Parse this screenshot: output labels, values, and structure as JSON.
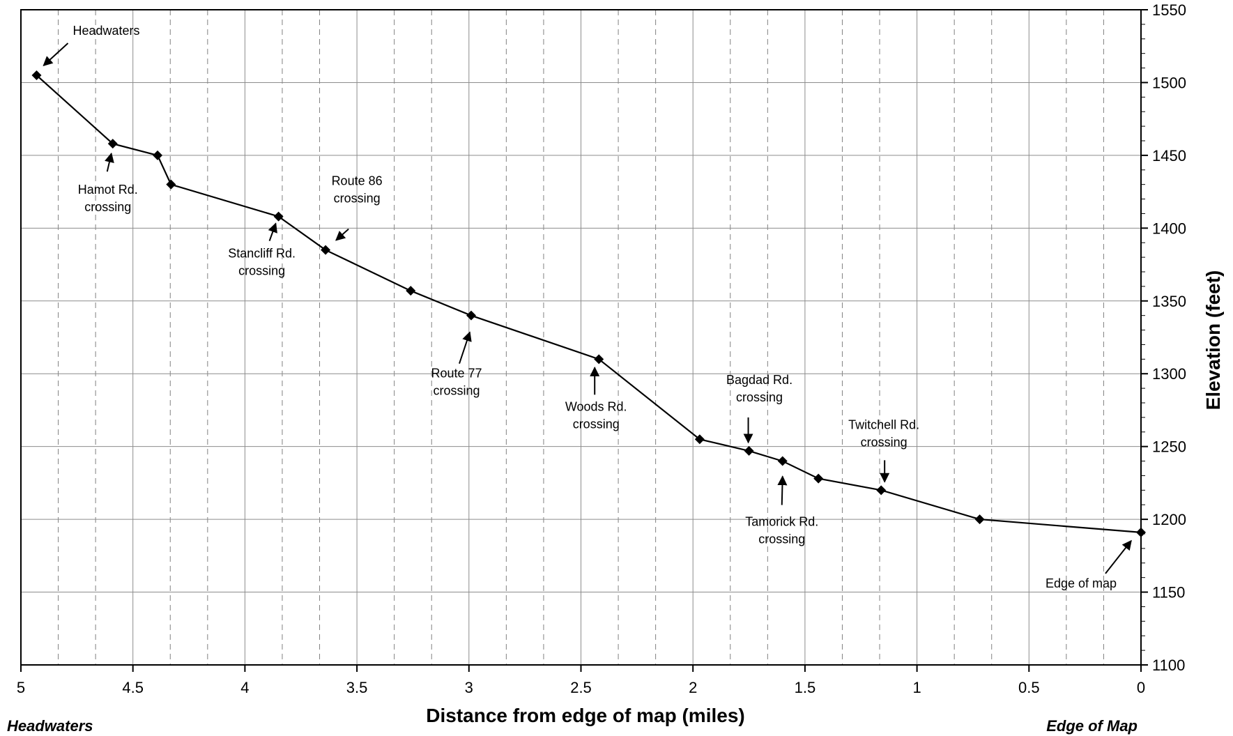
{
  "chart_data": {
    "type": "line",
    "xlabel": "Distance from edge of map (miles)",
    "ylabel": "Elevation (feet)",
    "xlim": [
      5,
      0
    ],
    "ylim": [
      1100,
      1550
    ],
    "x_reversed": true,
    "y_axis_side": "right",
    "grid": true,
    "x_ticks": [
      5,
      4.5,
      4,
      3.5,
      3,
      2.5,
      2,
      1.5,
      1,
      0.5,
      0
    ],
    "y_ticks": [
      1100,
      1150,
      1200,
      1250,
      1300,
      1350,
      1400,
      1450,
      1500,
      1550
    ],
    "x_tick_labels": [
      "5",
      "4.5",
      "4",
      "3.5",
      "3",
      "2.5",
      "2",
      "1.5",
      "1",
      "0.5",
      "0"
    ],
    "y_tick_labels": [
      "1100",
      "1150",
      "1200",
      "1250",
      "1300",
      "1350",
      "1400",
      "1450",
      "1500",
      "1550"
    ],
    "series": [
      {
        "marker": "diamond",
        "color": "#000000",
        "points": [
          {
            "x": 4.93,
            "y": 1505
          },
          {
            "x": 4.59,
            "y": 1458
          },
          {
            "x": 4.39,
            "y": 1450
          },
          {
            "x": 4.33,
            "y": 1430
          },
          {
            "x": 3.85,
            "y": 1408
          },
          {
            "x": 3.64,
            "y": 1385
          },
          {
            "x": 3.26,
            "y": 1357
          },
          {
            "x": 2.99,
            "y": 1340
          },
          {
            "x": 2.42,
            "y": 1310
          },
          {
            "x": 1.97,
            "y": 1255
          },
          {
            "x": 1.75,
            "y": 1247
          },
          {
            "x": 1.6,
            "y": 1240
          },
          {
            "x": 1.44,
            "y": 1228
          },
          {
            "x": 1.16,
            "y": 1220
          },
          {
            "x": 0.72,
            "y": 1200
          },
          {
            "x": 0.0,
            "y": 1191
          }
        ]
      }
    ],
    "annotations": [
      {
        "lines": [
          "Headwaters"
        ],
        "x": 4.93,
        "y": 1505
      },
      {
        "lines": [
          "Hamot  Rd.",
          "crossing"
        ],
        "x": 4.59,
        "y": 1458
      },
      {
        "lines": [
          "Stancliff Rd.",
          "crossing"
        ],
        "x": 3.85,
        "y": 1408
      },
      {
        "lines": [
          "Route  86",
          "crossing"
        ],
        "x": 3.64,
        "y": 1385
      },
      {
        "lines": [
          "Route  77",
          "crossing"
        ],
        "x": 2.99,
        "y": 1340
      },
      {
        "lines": [
          "Woods Rd.",
          "crossing"
        ],
        "x": 2.42,
        "y": 1310
      },
      {
        "lines": [
          "Bagdad Rd.",
          "crossing"
        ],
        "x": 1.75,
        "y": 1247
      },
      {
        "lines": [
          "Tamorick Rd.",
          "crossing"
        ],
        "x": 1.6,
        "y": 1240
      },
      {
        "lines": [
          "Twitchell  Rd.",
          "crossing"
        ],
        "x": 1.16,
        "y": 1220
      },
      {
        "lines": [
          "Edge of map"
        ],
        "x": 0.0,
        "y": 1191
      }
    ],
    "end_labels": {
      "left": "Headwaters",
      "right": "Edge of Map"
    }
  }
}
